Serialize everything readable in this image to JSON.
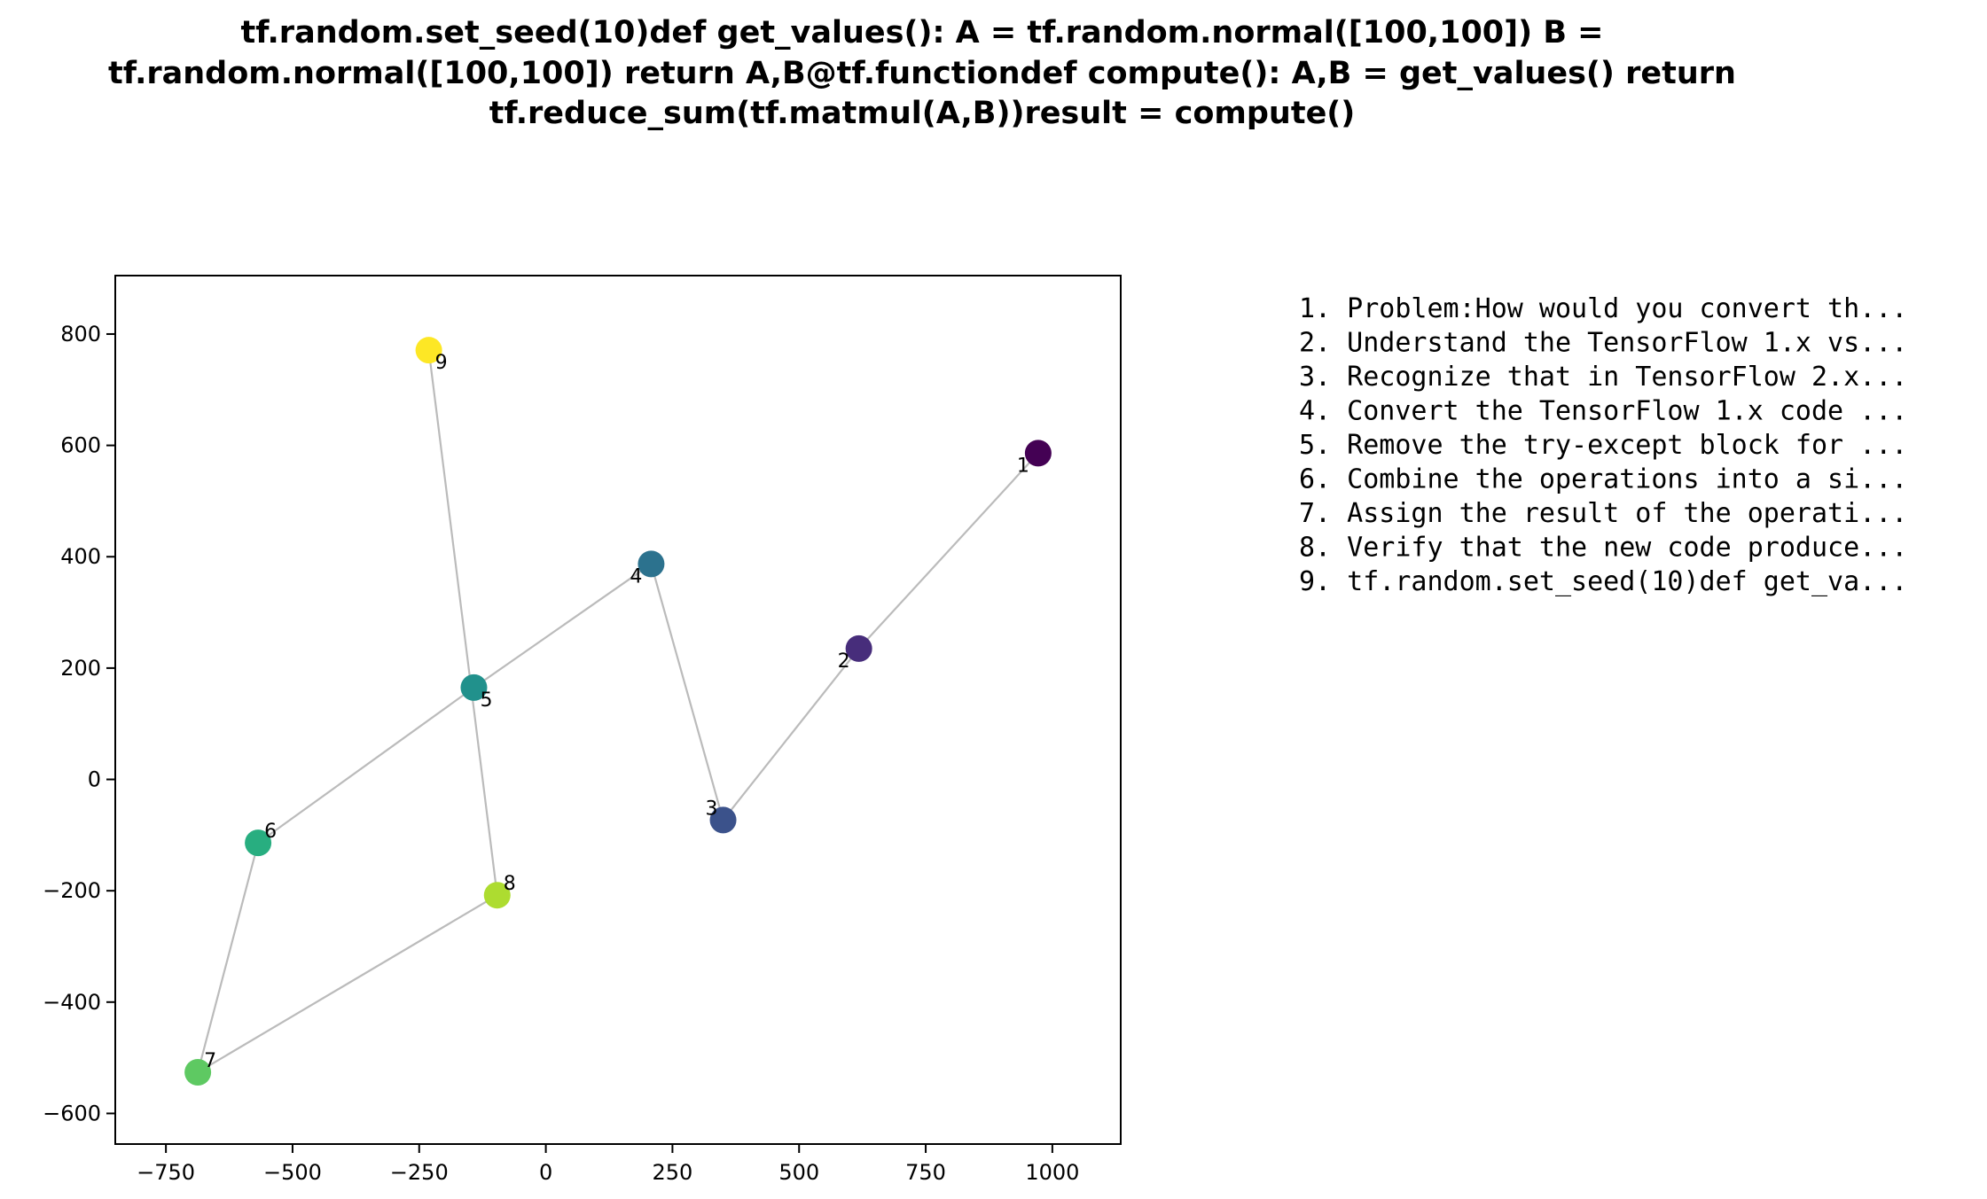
{
  "chart_data": {
    "type": "scatter",
    "title_lines": [
      "tf.random.set_seed(10)def get_values():  A = tf.random.normal([100,100])  B =",
      "tf.random.normal([100,100])  return A,B@tf.functiondef compute():  A,B = get_values()  return",
      "tf.reduce_sum(tf.matmul(A,B))result = compute()"
    ],
    "xlabel": "",
    "ylabel": "",
    "xlim": [
      -850,
      1135
    ],
    "ylim": [
      -655,
      905
    ],
    "x_ticks": [
      -750,
      -500,
      -250,
      0,
      250,
      500,
      750,
      1000
    ],
    "x_tick_labels": [
      "−750",
      "−500",
      "−250",
      "0",
      "250",
      "500",
      "750",
      "1000"
    ],
    "y_ticks": [
      800,
      600,
      400,
      200,
      0,
      -200,
      -400,
      -600
    ],
    "y_tick_labels": [
      "800",
      "600",
      "400",
      "200",
      "0",
      "−200",
      "−400",
      "−600"
    ],
    "grid": false,
    "path_color": "#bbbbbb",
    "points": [
      {
        "label": "1",
        "x": 972,
        "y": 586,
        "color": "#440154",
        "label_pos": "below-left"
      },
      {
        "label": "2",
        "x": 618,
        "y": 235,
        "color": "#472d7b",
        "label_pos": "below-left"
      },
      {
        "label": "3",
        "x": 350,
        "y": -73,
        "color": "#3b528b",
        "label_pos": "above-left"
      },
      {
        "label": "4",
        "x": 208,
        "y": 387,
        "color": "#2c728e",
        "label_pos": "below-left"
      },
      {
        "label": "5",
        "x": -142,
        "y": 165,
        "color": "#21918c",
        "label_pos": "below-right"
      },
      {
        "label": "6",
        "x": -568,
        "y": -114,
        "color": "#28ae80",
        "label_pos": "above-right"
      },
      {
        "label": "7",
        "x": -687,
        "y": -526,
        "color": "#5ec962",
        "label_pos": "above-right"
      },
      {
        "label": "8",
        "x": -96,
        "y": -208,
        "color": "#addc30",
        "label_pos": "above-right"
      },
      {
        "label": "9",
        "x": -231,
        "y": 771,
        "color": "#fde725",
        "label_pos": "below-right"
      }
    ]
  },
  "legend": {
    "items": [
      "1. Problem:How would you convert th...",
      "2. Understand the TensorFlow 1.x vs...",
      "3. Recognize that in TensorFlow 2.x...",
      "4. Convert the TensorFlow 1.x code ...",
      "5. Remove the try-except block for ...",
      "6. Combine the operations into a si...",
      "7. Assign the result of the operati...",
      "8. Verify that the new code produce...",
      "9. tf.random.set_seed(10)def get_va..."
    ]
  }
}
